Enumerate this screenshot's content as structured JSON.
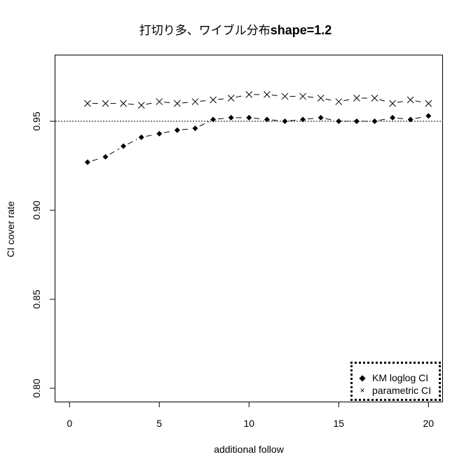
{
  "chart_data": {
    "type": "line",
    "title": "打切り多、ワイブル分布shape=1.2",
    "title_parts": {
      "jp": "打切り多、ワイブル分布",
      "en": "shape=1.2"
    },
    "xlabel": "additional follow",
    "ylabel": "CI cover rate",
    "xlim": [
      -0.8,
      20.8
    ],
    "ylim": [
      0.793,
      0.988
    ],
    "x_ticks": [
      0,
      5,
      10,
      15,
      20
    ],
    "x_tick_labels": [
      "0",
      "5",
      "10",
      "15",
      "20"
    ],
    "y_ticks": [
      0.8,
      0.85,
      0.9,
      0.95
    ],
    "y_tick_labels": [
      "0.80",
      "0.85",
      "0.90",
      "0.95"
    ],
    "grid": false,
    "reference_line": {
      "y": 0.95,
      "style": "dotted"
    },
    "legend_position": "bottomright",
    "x": [
      1,
      2,
      3,
      4,
      5,
      6,
      7,
      8,
      9,
      10,
      11,
      12,
      13,
      14,
      15,
      16,
      17,
      18,
      19,
      20
    ],
    "series": [
      {
        "name": "KM loglog CI",
        "marker": "diamond-filled",
        "line": "dashed",
        "values": [
          0.927,
          0.93,
          0.936,
          0.941,
          0.943,
          0.945,
          0.946,
          0.951,
          0.952,
          0.952,
          0.951,
          0.95,
          0.951,
          0.952,
          0.95,
          0.95,
          0.95,
          0.952,
          0.951,
          0.953
        ]
      },
      {
        "name": "parametric CI",
        "marker": "x-cross",
        "line": "dashed",
        "values": [
          0.96,
          0.96,
          0.96,
          0.959,
          0.961,
          0.96,
          0.961,
          0.962,
          0.963,
          0.965,
          0.965,
          0.964,
          0.964,
          0.963,
          0.961,
          0.963,
          0.963,
          0.96,
          0.962,
          0.96
        ]
      }
    ]
  },
  "legend": {
    "items": [
      {
        "label": "KM loglog CI",
        "symbol": "◆"
      },
      {
        "label": "parametric CI",
        "symbol": "×"
      }
    ]
  }
}
